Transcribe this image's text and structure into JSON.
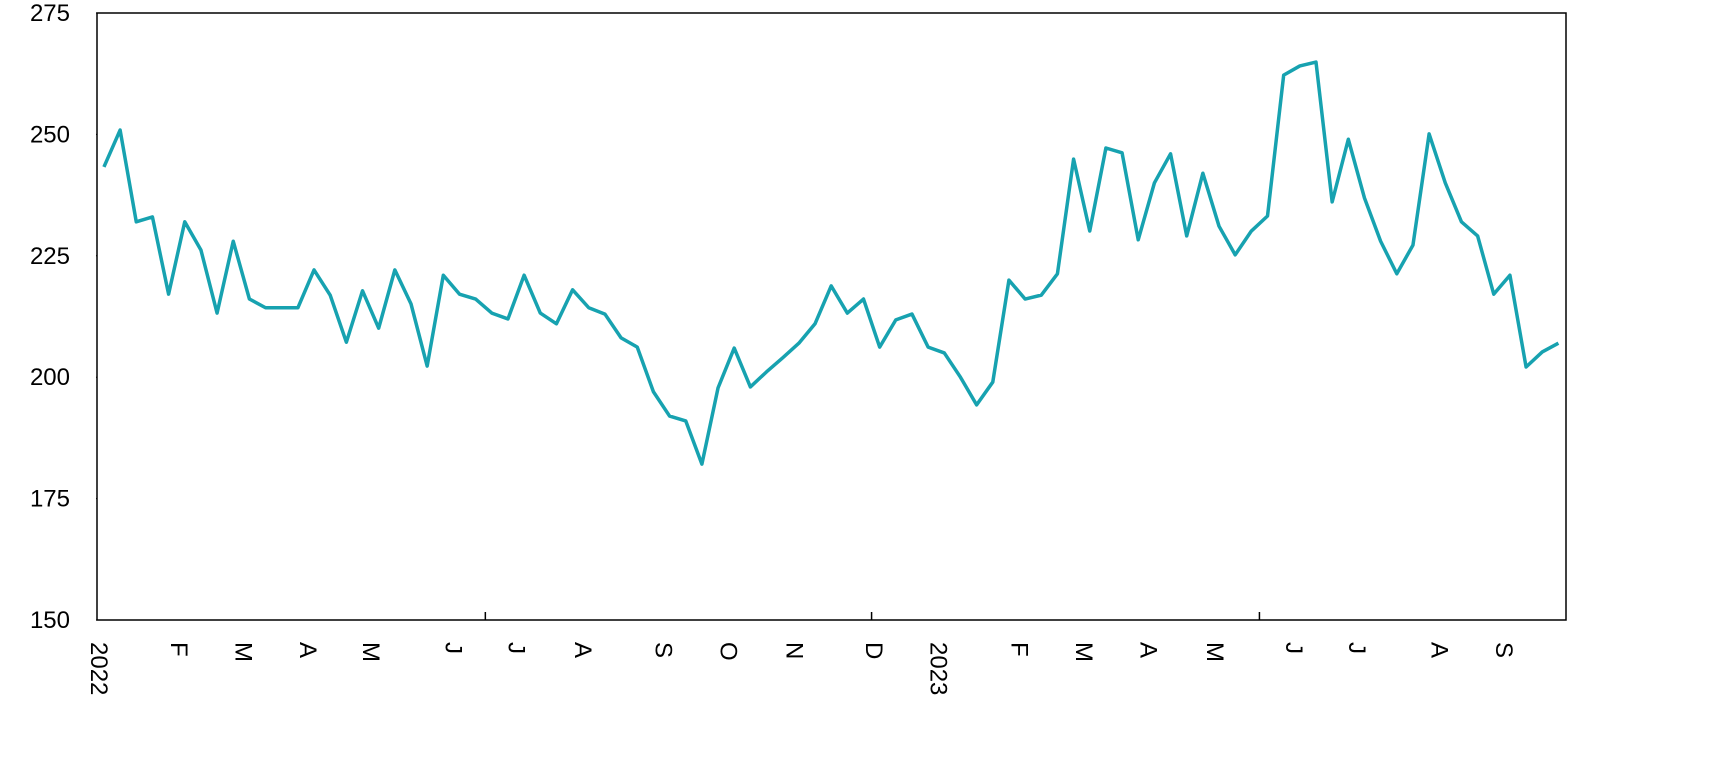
{
  "chart_data": {
    "type": "line",
    "x": [
      0,
      1,
      2,
      3,
      4,
      5,
      6,
      7,
      8,
      9,
      10,
      11,
      12,
      13,
      14,
      15,
      16,
      17,
      18,
      19,
      20,
      21,
      22,
      23,
      24,
      25,
      26,
      27,
      28,
      29,
      30,
      31,
      32,
      33,
      34,
      35,
      36,
      37,
      38,
      39,
      40,
      41,
      42,
      43,
      44,
      45,
      46,
      47,
      48,
      49,
      50,
      51,
      52,
      53,
      54,
      55,
      56,
      57,
      58,
      59,
      60,
      61,
      62,
      63,
      64,
      65,
      66,
      67,
      68,
      69,
      70,
      71,
      72,
      73,
      74,
      75,
      76,
      77,
      78,
      79,
      80,
      81,
      82,
      83,
      84,
      85,
      86,
      87,
      88,
      89,
      90
    ],
    "series": [
      {
        "color": "#17a2b0",
        "values": [
          243.3,
          250.9,
          232,
          233,
          217.1,
          232,
          226.2,
          213.2,
          228,
          216.1,
          214.3,
          214.3,
          214.3,
          222.1,
          216.9,
          207.2,
          217.8,
          210.1,
          222.1,
          215.1,
          202.3,
          221,
          217.1,
          216.1,
          213.2,
          212,
          221,
          213.2,
          211,
          218,
          214.3,
          213,
          208.1,
          206.2,
          197,
          192,
          191,
          182.1,
          197.8,
          206,
          198,
          201.1,
          204,
          207,
          211,
          218.8,
          213.2,
          216.1,
          206.2,
          211.8,
          213,
          206.2,
          205,
          200,
          194.3,
          199,
          220,
          216.1,
          216.9,
          221.3,
          244.9,
          230.1,
          247.2,
          246.2,
          228.3,
          240,
          246,
          229.1,
          242,
          231.1,
          225.2,
          230.1,
          233.2,
          262.2,
          264.1,
          264.9,
          236.1,
          249,
          236.9,
          228,
          221.3,
          227.2,
          250.1,
          240,
          232,
          229.1,
          217.1,
          221,
          202.1,
          205.2,
          207
        ]
      }
    ],
    "xlim": [
      -0.43,
      90.47
    ],
    "xticks": [
      {
        "value": -0.25,
        "label": "2022"
      },
      {
        "value": 4.7,
        "label": "F"
      },
      {
        "value": 8.7,
        "label": "M"
      },
      {
        "value": 12.7,
        "label": "A"
      },
      {
        "value": 16.6,
        "label": "M"
      },
      {
        "value": 21.7,
        "label": "J"
      },
      {
        "value": 25.6,
        "label": "J"
      },
      {
        "value": 29.7,
        "label": "A"
      },
      {
        "value": 34.7,
        "label": "S"
      },
      {
        "value": 38.7,
        "label": "O"
      },
      {
        "value": 42.8,
        "label": "N"
      },
      {
        "value": 47.7,
        "label": "D"
      },
      {
        "value": 51.7,
        "label": "2023"
      },
      {
        "value": 56.7,
        "label": "F"
      },
      {
        "value": 60.7,
        "label": "M"
      },
      {
        "value": 64.7,
        "label": "A"
      },
      {
        "value": 68.8,
        "label": "M"
      },
      {
        "value": 73.7,
        "label": "J"
      },
      {
        "value": 77.6,
        "label": "J"
      },
      {
        "value": 82.7,
        "label": "A"
      },
      {
        "value": 86.7,
        "label": "S"
      }
    ],
    "xtick_marks": [
      23.6,
      47.5,
      71.5
    ],
    "ylim": [
      150,
      275
    ],
    "yticks": [
      150,
      175,
      200,
      225,
      250,
      275
    ],
    "grid": false
  }
}
